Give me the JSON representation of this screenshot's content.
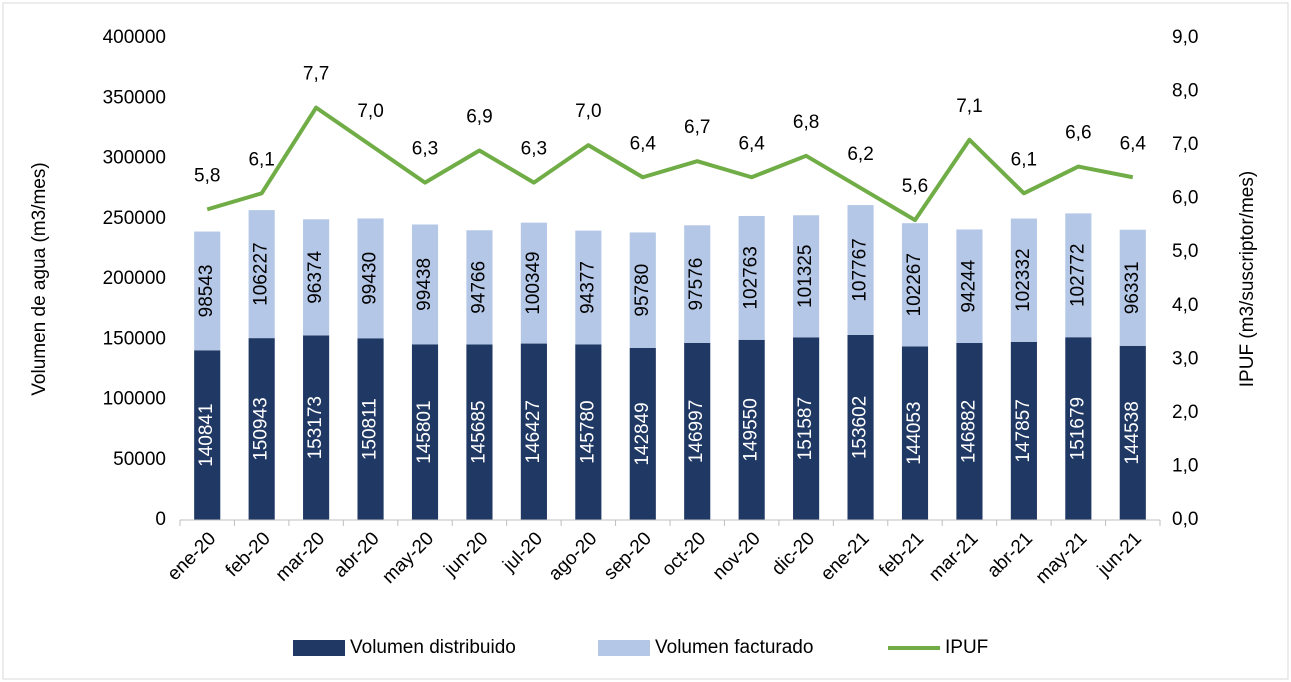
{
  "chart_data": {
    "type": "bar",
    "y_label": "Volumen de agua (m3/mes)",
    "y2_label": "IPUF (m3/suscriptor/mes)",
    "categories": [
      "ene-20",
      "feb-20",
      "mar-20",
      "abr-20",
      "may-20",
      "jun-20",
      "jul-20",
      "ago-20",
      "sep-20",
      "oct-20",
      "nov-20",
      "dic-20",
      "ene-21",
      "feb-21",
      "mar-21",
      "abr-21",
      "may-21",
      "jun-21"
    ],
    "series": [
      {
        "name": "Volumen distribuido",
        "color": "#203864",
        "type": "bar",
        "values": [
          140841,
          150943,
          153173,
          150811,
          145801,
          145685,
          146427,
          145780,
          142849,
          146997,
          149550,
          151587,
          153602,
          144053,
          146882,
          147857,
          151679,
          144538
        ]
      },
      {
        "name": "Volumen facturado",
        "color": "#b4c7e7",
        "type": "bar",
        "values": [
          98543,
          106227,
          96374,
          99430,
          99438,
          94766,
          100349,
          94377,
          95780,
          97576,
          102763,
          101325,
          107767,
          102267,
          94244,
          102332,
          102772,
          96331
        ]
      },
      {
        "name": "IPUF",
        "color": "#70ad47",
        "type": "line",
        "axis": "y2",
        "values": [
          5.8,
          6.1,
          7.7,
          7.0,
          6.3,
          6.9,
          6.3,
          7.0,
          6.4,
          6.7,
          6.4,
          6.8,
          6.2,
          5.6,
          7.1,
          6.1,
          6.6,
          6.4
        ],
        "value_labels": [
          "5,8",
          "6,1",
          "7,7",
          "7,0",
          "6,3",
          "6,9",
          "6,3",
          "7,0",
          "6,4",
          "6,7",
          "6,4",
          "6,8",
          "6,2",
          "5,6",
          "7,1",
          "6,1",
          "6,6",
          "6,4"
        ]
      }
    ],
    "ylim": [
      0,
      400000
    ],
    "yticks": [
      0,
      50000,
      100000,
      150000,
      200000,
      250000,
      300000,
      350000,
      400000
    ],
    "y2lim": [
      0,
      9
    ],
    "y2ticks": [
      {
        "value": 0,
        "label": "0,0"
      },
      {
        "value": 1,
        "label": "1,0"
      },
      {
        "value": 2,
        "label": "2,0"
      },
      {
        "value": 3,
        "label": "3,0"
      },
      {
        "value": 4,
        "label": "4,0"
      },
      {
        "value": 5,
        "label": "5,0"
      },
      {
        "value": 6,
        "label": "6,0"
      },
      {
        "value": 7,
        "label": "7,0"
      },
      {
        "value": 8,
        "label": "8,0"
      },
      {
        "value": 9,
        "label": "9,0"
      }
    ],
    "grid": false,
    "legend": "bottom"
  }
}
